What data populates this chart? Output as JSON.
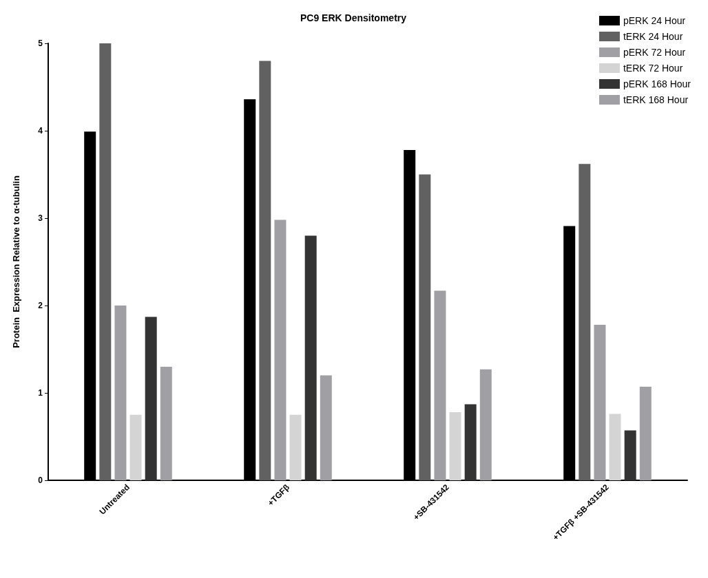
{
  "chart_data": {
    "type": "bar",
    "title": "PC9 ERK Densitometry",
    "ylabel": "Protein  Expression Relative to α-tubulin",
    "categories": [
      "Untreated",
      "+TGFβ",
      "+SB-431542",
      "+TGFβ +SB-431542"
    ],
    "series": [
      {
        "name": "pERK 24 Hour",
        "color": "#000000",
        "values": [
          3.99,
          4.36,
          3.78,
          2.91
        ]
      },
      {
        "name": "tERK 24 Hour",
        "color": "#616161",
        "values": [
          5.0,
          4.8,
          3.5,
          3.62
        ]
      },
      {
        "name": "pERK 72 Hour",
        "color": "#a0a0a4",
        "values": [
          2.0,
          2.98,
          2.17,
          1.78
        ]
      },
      {
        "name": "tERK 72 Hour",
        "color": "#d4d4d4",
        "values": [
          0.75,
          0.75,
          0.78,
          0.76
        ]
      },
      {
        "name": "pERK 168 Hour",
        "color": "#333333",
        "values": [
          1.87,
          2.8,
          0.87,
          0.57
        ]
      },
      {
        "name": "tERK 168 Hour",
        "color": "#a0a0a4",
        "values": [
          1.3,
          1.2,
          1.27,
          1.07
        ]
      }
    ],
    "ylim": [
      0,
      5
    ],
    "yticks": [
      0,
      1,
      2,
      3,
      4,
      5
    ],
    "grid": false,
    "legend": "top right"
  }
}
